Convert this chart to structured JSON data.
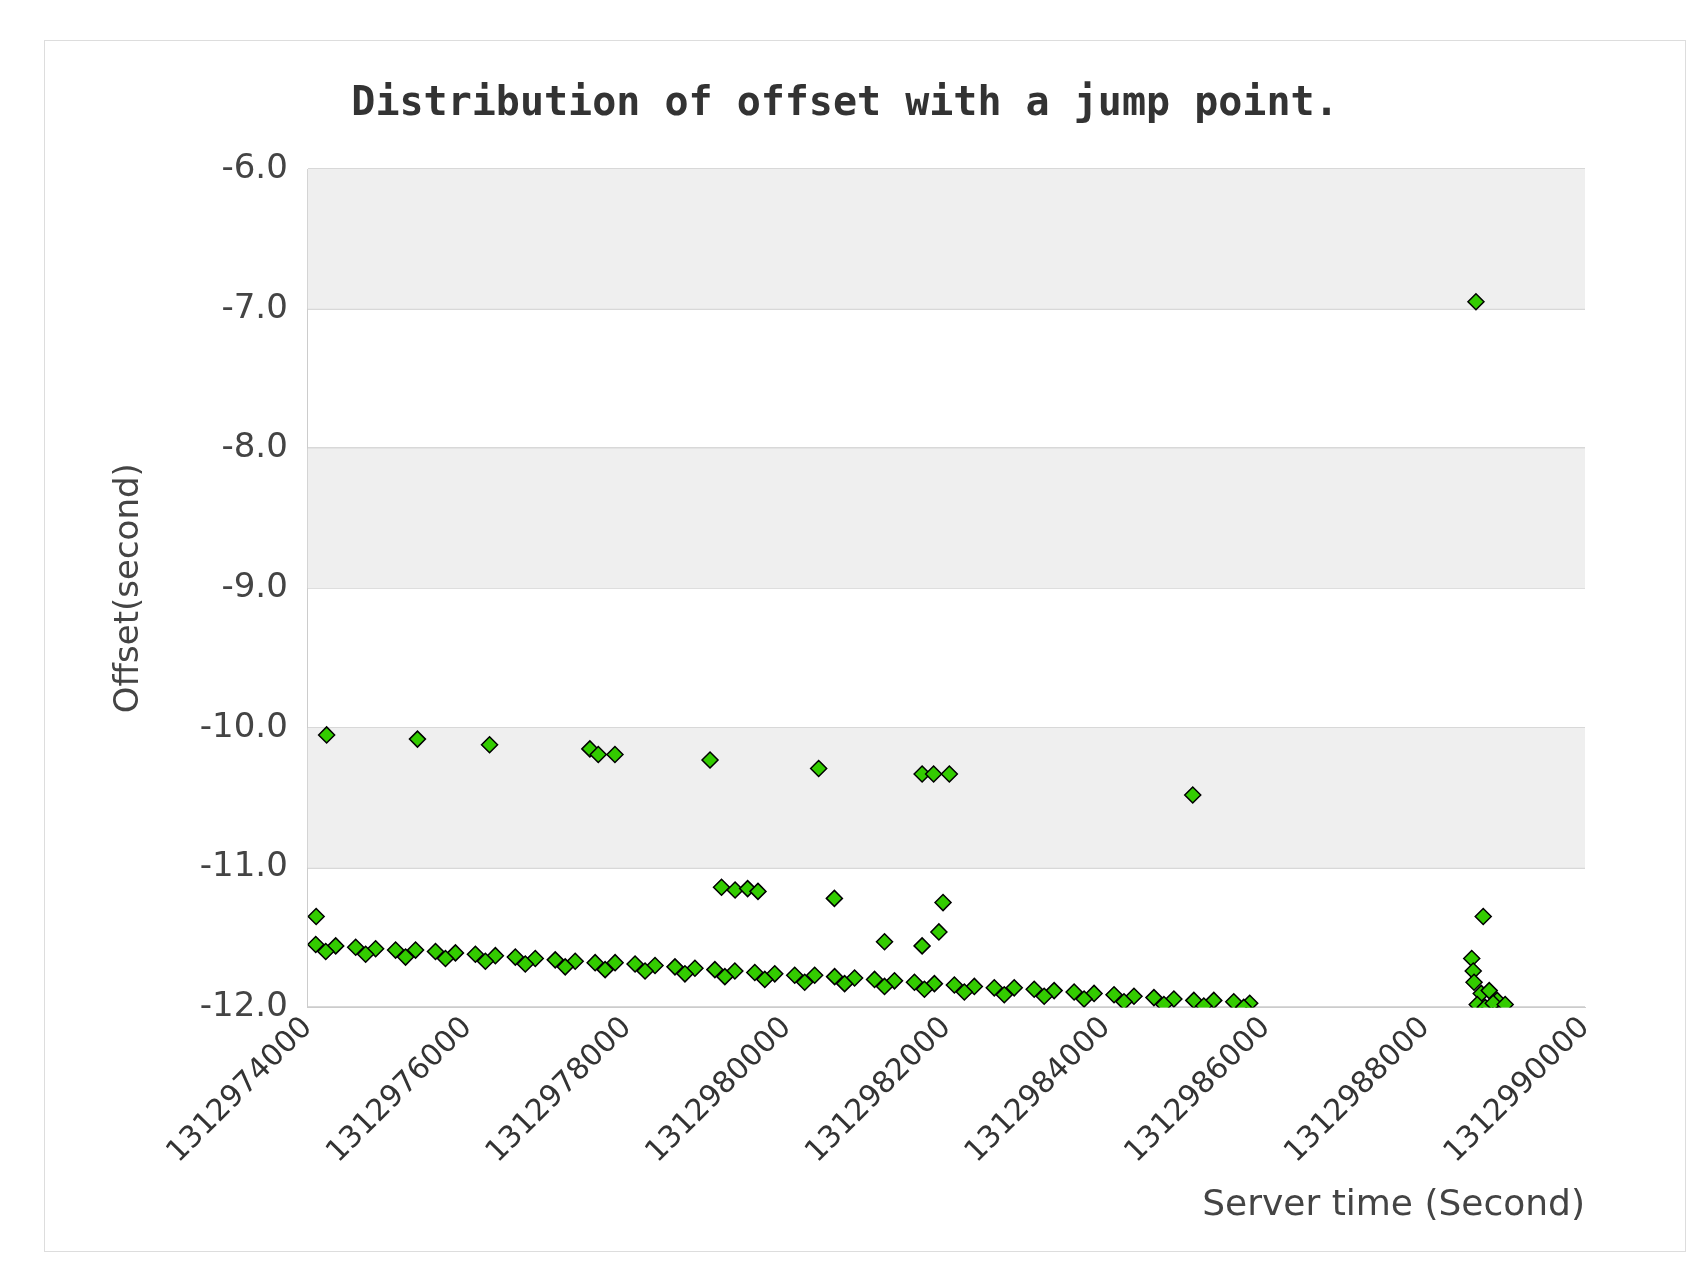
{
  "chart_data": {
    "type": "scatter",
    "title": "Distribution of offset with a jump point.",
    "xlabel": "Server time (Second)",
    "ylabel": "Offset(second)",
    "xlim": [
      1312974000,
      1312990000
    ],
    "xticks": [
      1312974000,
      1312976000,
      1312978000,
      1312980000,
      1312982000,
      1312984000,
      1312986000,
      1312988000,
      1312990000
    ],
    "ylim": [
      -12,
      -6
    ],
    "yticks": [
      {
        "value": -12,
        "label": "-12.0"
      },
      {
        "value": -11,
        "label": "-11.0"
      },
      {
        "value": -10,
        "label": "-10.0"
      },
      {
        "value": -9,
        "label": "-9.0"
      },
      {
        "value": -8,
        "label": "-8.0"
      },
      {
        "value": -7,
        "label": "-7.0"
      },
      {
        "value": -6,
        "label": "-6.0"
      }
    ],
    "grid": "y",
    "legend": false,
    "marker": "diamond",
    "series": [
      {
        "color": "#33cc00",
        "x": [
          1312974236,
          1312975374,
          1312976277,
          1312977534,
          1312977639,
          1312977848,
          1312979039,
          1312980400,
          1312981696,
          1312981840,
          1312982037,
          1312985086,
          1312988634,
          1312974105,
          1312979183,
          1312979353,
          1312979510,
          1312979640,
          1312980597,
          1312981225,
          1312981696,
          1312981906,
          1312981958,
          1312988725,
          1312988581,
          1312988600,
          1312988610,
          1312988700,
          1312988800,
          1312988900,
          1312988650,
          1312988750,
          1312988850,
          1312989000,
          1312974100,
          1312974350,
          1312974600,
          1312974850,
          1312975100,
          1312975350,
          1312975600,
          1312975850,
          1312976100,
          1312976350,
          1312976600,
          1312976850,
          1312977100,
          1312977350,
          1312977600,
          1312977850,
          1312978100,
          1312978350,
          1312978600,
          1312978850,
          1312979100,
          1312979350,
          1312979600,
          1312979850,
          1312980100,
          1312980350,
          1312980600,
          1312980850,
          1312981100,
          1312981350,
          1312981600,
          1312981850,
          1312982100,
          1312982350,
          1312982600,
          1312982850,
          1312983100,
          1312983350,
          1312983600,
          1312983850,
          1312984100,
          1312984350,
          1312984600,
          1312984850,
          1312985100,
          1312985350,
          1312985600,
          1312985800,
          1312974225,
          1312974725,
          1312975225,
          1312975725,
          1312976225,
          1312976725,
          1312977225,
          1312977725,
          1312978225,
          1312978725,
          1312979225,
          1312979725,
          1312980225,
          1312980725,
          1312981225,
          1312981725,
          1312982225,
          1312982725,
          1312983225,
          1312983725,
          1312984225,
          1312984725,
          1312985225,
          1312985725
        ],
        "values": [
          -10.05,
          -10.08,
          -10.12,
          -10.15,
          -10.19,
          -10.19,
          -10.23,
          -10.29,
          -10.33,
          -10.33,
          -10.33,
          -10.48,
          -6.95,
          -11.35,
          -11.14,
          -11.16,
          -11.15,
          -11.17,
          -11.22,
          -11.53,
          -11.56,
          -11.46,
          -11.25,
          -11.35,
          -11.65,
          -11.74,
          -11.82,
          -11.9,
          -11.88,
          -11.95,
          -11.98,
          -12.0,
          -11.97,
          -11.98,
          -11.55,
          -11.56,
          -11.57,
          -11.58,
          -11.59,
          -11.59,
          -11.6,
          -11.61,
          -11.62,
          -11.63,
          -11.64,
          -11.65,
          -11.66,
          -11.67,
          -11.68,
          -11.68,
          -11.69,
          -11.7,
          -11.71,
          -11.72,
          -11.73,
          -11.74,
          -11.75,
          -11.76,
          -11.77,
          -11.77,
          -11.78,
          -11.79,
          -11.8,
          -11.81,
          -11.82,
          -11.83,
          -11.84,
          -11.85,
          -11.86,
          -11.86,
          -11.87,
          -11.88,
          -11.89,
          -11.9,
          -11.91,
          -11.92,
          -11.93,
          -11.94,
          -11.95,
          -11.95,
          -11.96,
          -11.97,
          -11.6,
          -11.62,
          -11.64,
          -11.65,
          -11.67,
          -11.69,
          -11.71,
          -11.73,
          -11.74,
          -11.76,
          -11.78,
          -11.8,
          -11.82,
          -11.83,
          -11.85,
          -11.87,
          -11.89,
          -11.91,
          -11.92,
          -11.94,
          -11.96,
          -11.98,
          -11.99,
          -12.0
        ]
      }
    ]
  }
}
